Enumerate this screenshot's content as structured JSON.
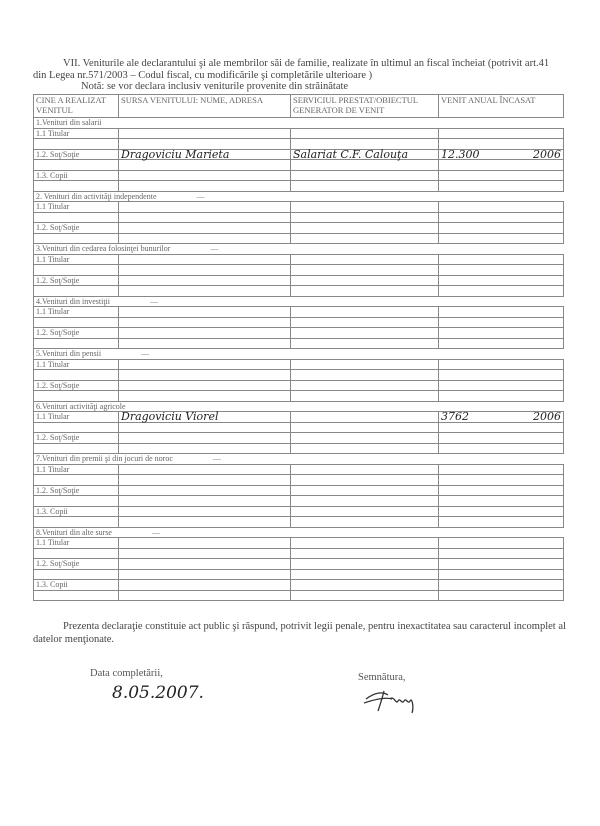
{
  "intro": {
    "heading": "VII. Veniturile ale declarantului şi ale membrilor săi de familie, realizate în ultimul an fiscal încheiat (potrivit art.41 din Legea nr.571/2003 – Codul fiscal, cu modificările şi completările ulterioare )",
    "note": "Notă: se vor declara inclusiv veniturile provenite din străinătate"
  },
  "table": {
    "headers": [
      "CINE A REALIZAT VENITUL",
      "SURSA VENITULUI: NUME, ADRESA",
      "SERVICIUL PRESTAT/OBIECTUL GENERATOR DE VENIT",
      "VENIT ANUAL ÎNCASAT"
    ],
    "sections": [
      {
        "title": "1.Venituri din salarii",
        "dash": "",
        "rows": [
          {
            "label": "1.1 Titular"
          },
          {
            "label": "1.2. Soţ/Soţie",
            "source": "Dragoviciu Marieta",
            "service": "Salariat C.F. Calouţa",
            "income": "12.300",
            "year": "2006"
          },
          {
            "label": "1.3. Copii"
          }
        ]
      },
      {
        "title": "2. Venituri din activităţi independente",
        "dash": "—",
        "rows": [
          {
            "label": "1.1 Titular"
          },
          {
            "label": "1.2. Soţ/Soţie"
          }
        ]
      },
      {
        "title": "3.Venituri din cedarea folosinţei bunurilor",
        "dash": "—",
        "rows": [
          {
            "label": "1.1 Titular"
          },
          {
            "label": "1.2. Soţ/Soţie"
          }
        ]
      },
      {
        "title": "4.Venituri din investiţii",
        "dash": "—",
        "rows": [
          {
            "label": "1.1 Titular"
          },
          {
            "label": "1.2. Soţ/Soţie"
          }
        ]
      },
      {
        "title": "5.Venituri din pensii",
        "dash": "—",
        "rows": [
          {
            "label": "1.1 Titular"
          },
          {
            "label": "1.2. Soţ/Soţie"
          }
        ]
      },
      {
        "title": "6.Venituri activităţi agricole",
        "dash": "",
        "rows": [
          {
            "label": "1.1 Titular",
            "source": "Dragoviciu Viorel",
            "income": "3762",
            "year": "2006"
          },
          {
            "label": "1.2. Soţ/Soţie"
          }
        ]
      },
      {
        "title": "7.Venituri din premii şi din jocuri de noroc",
        "dash": "—",
        "rows": [
          {
            "label": "1.1 Titular"
          },
          {
            "label": "1.2. Soţ/Soţie"
          },
          {
            "label": "1.3. Copii"
          }
        ]
      },
      {
        "title": "8.Venituri din alte surse",
        "dash": "—",
        "rows": [
          {
            "label": "1.1 Titular"
          },
          {
            "label": "1.2. Soţ/Soţie"
          },
          {
            "label": "1.3. Copii"
          }
        ]
      }
    ]
  },
  "footer": {
    "statement": "Prezenta declaraţie constituie act public şi răspund, potrivit legii penale, pentru inexactitatea sau caracterul incomplet al datelor menţionate.",
    "date_label": "Data completării,",
    "date_value": "8.05.2007.",
    "signature_label": "Semnătura,"
  }
}
